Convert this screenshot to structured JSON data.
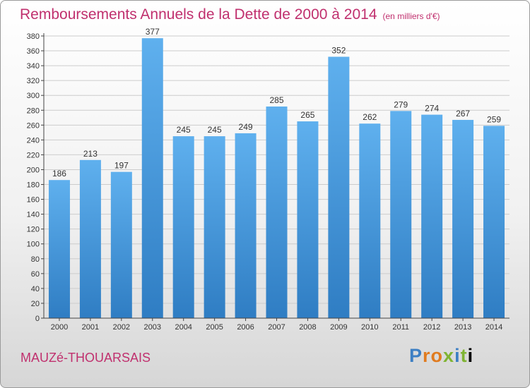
{
  "header": {
    "title": "Remboursements Annuels de la Dette de 2000 à 2014",
    "subtitle": "(en milliers d'€)"
  },
  "footer": {
    "commune": "MAUZé-THOUARSAIS",
    "logo": [
      "P",
      "r",
      "o",
      "x",
      "i",
      "t",
      "i"
    ]
  },
  "colors": {
    "bar_top": "#5fb0ee",
    "bar_bottom": "#2f7dc3",
    "grid": "#cccccc",
    "title": "#c0306e"
  },
  "chart_data": {
    "type": "bar",
    "title": "Remboursements Annuels de la Dette de 2000 à 2014",
    "subtitle": "(en milliers d'€)",
    "categories": [
      "2000",
      "2001",
      "2002",
      "2003",
      "2004",
      "2005",
      "2006",
      "2007",
      "2008",
      "2009",
      "2010",
      "2011",
      "2012",
      "2013",
      "2014"
    ],
    "values": [
      186,
      213,
      197,
      377,
      245,
      245,
      249,
      285,
      265,
      352,
      262,
      279,
      274,
      267,
      259
    ],
    "ylim": [
      0,
      380
    ],
    "ytick_step": 20,
    "grid": true,
    "legend": "none"
  }
}
